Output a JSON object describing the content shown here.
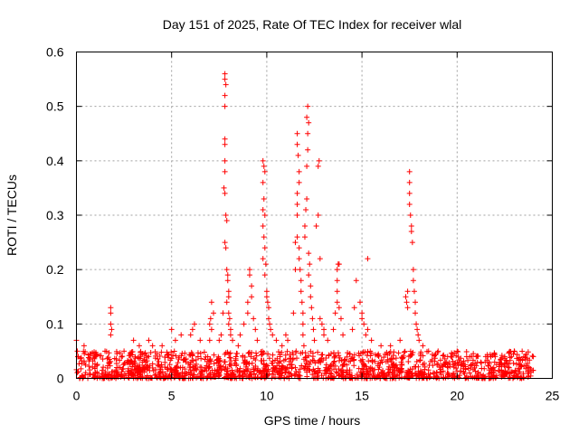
{
  "chart_data": {
    "type": "scatter",
    "title": "Day 151 of 2025, Rate Of TEC Index for receiver wlal",
    "xlabel": "GPS time / hours",
    "ylabel": "ROTI / TECUs",
    "xlim": [
      0,
      25
    ],
    "ylim": [
      0,
      0.6
    ],
    "xticks": [
      0,
      5,
      10,
      15,
      20,
      25
    ],
    "yticks": [
      0,
      0.1,
      0.2,
      0.3,
      0.4,
      0.5,
      0.6
    ],
    "xtick_labels": [
      "0",
      "5",
      "10",
      "15",
      "20",
      "25"
    ],
    "ytick_labels": [
      "0",
      "0.1",
      "0.2",
      "0.3",
      "0.4",
      "0.5",
      "0.6"
    ],
    "grid": true,
    "marker": "+",
    "color": "#ff0000",
    "baseline": {
      "x_range": [
        0,
        24
      ],
      "typical_max": 0.05
    },
    "series": [
      {
        "name": "ROTI",
        "points": [
          [
            0.0,
            0.07
          ],
          [
            0.05,
            0.05
          ],
          [
            0.1,
            0.04
          ],
          [
            0.4,
            0.06
          ],
          [
            1.0,
            0.04
          ],
          [
            1.5,
            0.05
          ],
          [
            1.8,
            0.13
          ],
          [
            1.8,
            0.12
          ],
          [
            1.8,
            0.1
          ],
          [
            1.85,
            0.09
          ],
          [
            1.8,
            0.08
          ],
          [
            2.5,
            0.05
          ],
          [
            3.0,
            0.07
          ],
          [
            3.3,
            0.06
          ],
          [
            3.8,
            0.07
          ],
          [
            4.0,
            0.06
          ],
          [
            4.5,
            0.06
          ],
          [
            5.0,
            0.09
          ],
          [
            5.2,
            0.07
          ],
          [
            5.5,
            0.08
          ],
          [
            6.0,
            0.08
          ],
          [
            6.1,
            0.09
          ],
          [
            6.2,
            0.1
          ],
          [
            6.5,
            0.07
          ],
          [
            7.0,
            0.07
          ],
          [
            7.0,
            0.1
          ],
          [
            7.05,
            0.11
          ],
          [
            7.1,
            0.14
          ],
          [
            7.2,
            0.12
          ],
          [
            7.1,
            0.09
          ],
          [
            7.5,
            0.07
          ],
          [
            7.6,
            0.08
          ],
          [
            7.7,
            0.12
          ],
          [
            7.8,
            0.56
          ],
          [
            7.8,
            0.55
          ],
          [
            7.85,
            0.54
          ],
          [
            7.8,
            0.52
          ],
          [
            7.8,
            0.5
          ],
          [
            7.8,
            0.44
          ],
          [
            7.8,
            0.43
          ],
          [
            7.8,
            0.4
          ],
          [
            7.8,
            0.38
          ],
          [
            7.75,
            0.35
          ],
          [
            7.8,
            0.34
          ],
          [
            7.85,
            0.3
          ],
          [
            7.9,
            0.29
          ],
          [
            7.8,
            0.25
          ],
          [
            7.85,
            0.24
          ],
          [
            7.9,
            0.2
          ],
          [
            7.95,
            0.19
          ],
          [
            7.95,
            0.18
          ],
          [
            8.0,
            0.16
          ],
          [
            8.0,
            0.15
          ],
          [
            7.9,
            0.14
          ],
          [
            8.0,
            0.12
          ],
          [
            8.05,
            0.11
          ],
          [
            8.0,
            0.1
          ],
          [
            8.1,
            0.09
          ],
          [
            8.1,
            0.08
          ],
          [
            8.2,
            0.07
          ],
          [
            8.5,
            0.06
          ],
          [
            8.6,
            0.08
          ],
          [
            8.8,
            0.1
          ],
          [
            9.0,
            0.12
          ],
          [
            9.0,
            0.14
          ],
          [
            9.1,
            0.2
          ],
          [
            9.1,
            0.19
          ],
          [
            9.2,
            0.17
          ],
          [
            9.2,
            0.15
          ],
          [
            9.3,
            0.11
          ],
          [
            9.4,
            0.09
          ],
          [
            9.5,
            0.07
          ],
          [
            9.8,
            0.4
          ],
          [
            9.85,
            0.39
          ],
          [
            9.9,
            0.38
          ],
          [
            9.8,
            0.36
          ],
          [
            9.85,
            0.33
          ],
          [
            9.8,
            0.31
          ],
          [
            9.9,
            0.3
          ],
          [
            9.8,
            0.28
          ],
          [
            9.85,
            0.26
          ],
          [
            9.9,
            0.24
          ],
          [
            9.8,
            0.22
          ],
          [
            9.95,
            0.21
          ],
          [
            9.9,
            0.19
          ],
          [
            10.0,
            0.16
          ],
          [
            10.0,
            0.15
          ],
          [
            10.05,
            0.14
          ],
          [
            10.1,
            0.13
          ],
          [
            10.1,
            0.11
          ],
          [
            10.15,
            0.1
          ],
          [
            10.2,
            0.09
          ],
          [
            10.3,
            0.08
          ],
          [
            10.5,
            0.07
          ],
          [
            10.8,
            0.06
          ],
          [
            11.0,
            0.08
          ],
          [
            11.1,
            0.07
          ],
          [
            11.4,
            0.12
          ],
          [
            11.5,
            0.2
          ],
          [
            11.5,
            0.25
          ],
          [
            11.6,
            0.26
          ],
          [
            11.6,
            0.3
          ],
          [
            11.6,
            0.32
          ],
          [
            11.6,
            0.34
          ],
          [
            11.7,
            0.38
          ],
          [
            11.65,
            0.41
          ],
          [
            11.6,
            0.43
          ],
          [
            11.6,
            0.45
          ],
          [
            11.7,
            0.36
          ],
          [
            11.7,
            0.24
          ],
          [
            11.7,
            0.22
          ],
          [
            11.75,
            0.2
          ],
          [
            11.8,
            0.18
          ],
          [
            11.8,
            0.16
          ],
          [
            11.85,
            0.14
          ],
          [
            11.9,
            0.12
          ],
          [
            11.9,
            0.1
          ],
          [
            11.9,
            0.08
          ],
          [
            11.95,
            0.06
          ],
          [
            12.0,
            0.28
          ],
          [
            12.0,
            0.26
          ],
          [
            12.05,
            0.31
          ],
          [
            12.1,
            0.33
          ],
          [
            12.1,
            0.39
          ],
          [
            12.15,
            0.42
          ],
          [
            12.15,
            0.45
          ],
          [
            12.2,
            0.47
          ],
          [
            12.1,
            0.48
          ],
          [
            12.15,
            0.5
          ],
          [
            12.2,
            0.23
          ],
          [
            12.25,
            0.21
          ],
          [
            12.2,
            0.19
          ],
          [
            12.3,
            0.17
          ],
          [
            12.3,
            0.15
          ],
          [
            12.35,
            0.13
          ],
          [
            12.4,
            0.11
          ],
          [
            12.45,
            0.09
          ],
          [
            12.5,
            0.07
          ],
          [
            12.6,
            0.28
          ],
          [
            12.7,
            0.3
          ],
          [
            12.7,
            0.39
          ],
          [
            12.75,
            0.4
          ],
          [
            12.8,
            0.22
          ],
          [
            12.8,
            0.11
          ],
          [
            12.9,
            0.1
          ],
          [
            13.0,
            0.09
          ],
          [
            13.0,
            0.08
          ],
          [
            13.2,
            0.07
          ],
          [
            13.5,
            0.09
          ],
          [
            13.6,
            0.12
          ],
          [
            13.7,
            0.14
          ],
          [
            13.7,
            0.16
          ],
          [
            13.7,
            0.18
          ],
          [
            13.7,
            0.2
          ],
          [
            13.75,
            0.21
          ],
          [
            13.8,
            0.21
          ],
          [
            13.8,
            0.13
          ],
          [
            13.9,
            0.11
          ],
          [
            14.0,
            0.08
          ],
          [
            14.5,
            0.09
          ],
          [
            14.6,
            0.13
          ],
          [
            14.7,
            0.18
          ],
          [
            14.9,
            0.14
          ],
          [
            15.0,
            0.12
          ],
          [
            15.0,
            0.11
          ],
          [
            15.1,
            0.1
          ],
          [
            15.2,
            0.08
          ],
          [
            15.3,
            0.22
          ],
          [
            15.3,
            0.09
          ],
          [
            15.5,
            0.07
          ],
          [
            16.0,
            0.06
          ],
          [
            16.5,
            0.06
          ],
          [
            17.0,
            0.07
          ],
          [
            17.3,
            0.15
          ],
          [
            17.35,
            0.14
          ],
          [
            17.4,
            0.13
          ],
          [
            17.4,
            0.16
          ],
          [
            17.5,
            0.38
          ],
          [
            17.5,
            0.36
          ],
          [
            17.5,
            0.34
          ],
          [
            17.5,
            0.32
          ],
          [
            17.55,
            0.3
          ],
          [
            17.6,
            0.28
          ],
          [
            17.6,
            0.27
          ],
          [
            17.65,
            0.25
          ],
          [
            17.7,
            0.2
          ],
          [
            17.7,
            0.18
          ],
          [
            17.75,
            0.16
          ],
          [
            17.8,
            0.14
          ],
          [
            17.8,
            0.12
          ],
          [
            17.85,
            0.1
          ],
          [
            17.9,
            0.09
          ],
          [
            17.95,
            0.08
          ],
          [
            18.0,
            0.07
          ],
          [
            18.2,
            0.06
          ],
          [
            18.5,
            0.05
          ],
          [
            19.0,
            0.05
          ],
          [
            19.5,
            0.04
          ],
          [
            20.0,
            0.05
          ],
          [
            20.5,
            0.04
          ],
          [
            21.0,
            0.04
          ],
          [
            21.5,
            0.04
          ],
          [
            22.0,
            0.04
          ],
          [
            22.5,
            0.04
          ],
          [
            23.0,
            0.05
          ],
          [
            23.5,
            0.04
          ],
          [
            24.0,
            0.04
          ]
        ]
      }
    ]
  }
}
